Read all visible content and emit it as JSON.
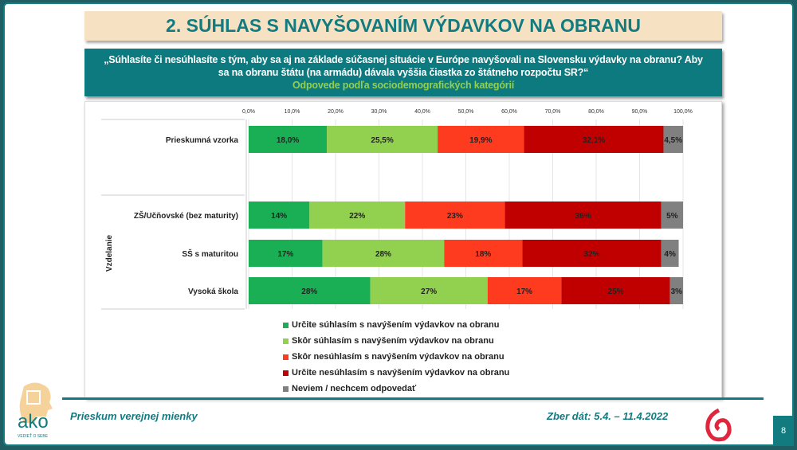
{
  "title": "2. SÚHLAS S NAVYŠOVANÍM VÝDAVKOV NA OBRANU",
  "question": {
    "line1": "„Súhlasíte či nesúhlasíte s tým, aby sa aj na základe súčasnej situácie v Európe navyšovali na Slovensku výdavky na obranu? Aby",
    "line2": "sa na obranu štátu (na armádu) dávala vyššia čiastka zo štátneho rozpočtu SR?“",
    "sub": "Odpovede podľa sociodemografických kategórií"
  },
  "chart_data": {
    "type": "bar",
    "orientation": "horizontal",
    "stacked": true,
    "xlim": [
      0,
      100
    ],
    "x_ticks": [
      "0,0%",
      "10,0%",
      "20,0%",
      "30,0%",
      "40,0%",
      "50,0%",
      "60,0%",
      "70,0%",
      "80,0%",
      "90,0%",
      "100,0%"
    ],
    "group_label": "Vzdelanie",
    "categories": [
      "Prieskumná vzorka",
      "ZŠ/Učňovské (bez maturity)",
      "SŠ s maturitou",
      "Vysoká škola"
    ],
    "series": [
      {
        "name": "Určite súhlasím s navýšením výdavkov na obranu",
        "color": "#1aaf54",
        "values": [
          18.0,
          14,
          17,
          28
        ],
        "labels": [
          "18,0%",
          "14%",
          "17%",
          "28%"
        ]
      },
      {
        "name": "Skôr súhlasím s navýšením výdavkov na obranu",
        "color": "#92d050",
        "values": [
          25.5,
          22,
          28,
          27
        ],
        "labels": [
          "25,5%",
          "22%",
          "28%",
          "27%"
        ]
      },
      {
        "name": "Skôr nesúhlasím s navýšením výdavkov na obranu",
        "color": "#ff3b1f",
        "values": [
          19.9,
          23,
          18,
          17
        ],
        "labels": [
          "19,9%",
          "23%",
          "18%",
          "17%"
        ]
      },
      {
        "name": "Určite nesúhlasím s navýšením výdavkov na obranu",
        "color": "#c00000",
        "values": [
          32.1,
          36,
          32,
          25
        ],
        "labels": [
          "32,1%",
          "36%",
          "32%",
          "25%"
        ]
      },
      {
        "name": "Neviem / nechcem odpovedať",
        "color": "#808080",
        "values": [
          4.5,
          5,
          4,
          3
        ],
        "labels": [
          "4,5%",
          "5%",
          "4%",
          "3%"
        ]
      }
    ],
    "legend_position": "bottom"
  },
  "footer": {
    "left": "Prieskum verejnej mienky",
    "right": "Zber dát: 5.4. – 11.4.2022",
    "page": "8",
    "logo_text": "ako",
    "logo_tagline": "VEDIEŤ O SEBE"
  }
}
